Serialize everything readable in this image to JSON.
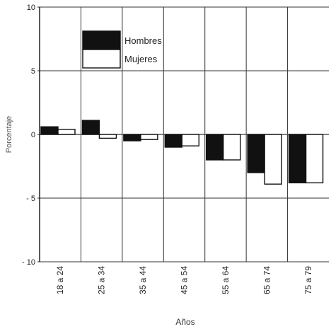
{
  "chart_data": {
    "type": "bar",
    "title": "",
    "xlabel": "Años",
    "ylabel": "Porcentaje",
    "ylim": [
      -10,
      10
    ],
    "yticks": [
      "10",
      "5",
      "0",
      "- 5",
      "- 10"
    ],
    "ytick_values": [
      10,
      5,
      0,
      -5,
      -10
    ],
    "categories": [
      "18 a 24",
      "25 a 34",
      "35 a 44",
      "45 a 54",
      "55 a 64",
      "65 a 74",
      "75 a 79"
    ],
    "series": [
      {
        "name": "Hombres",
        "values": [
          0.6,
          1.1,
          -0.5,
          -1.0,
          -2.0,
          -3.0,
          -3.8
        ],
        "color": "#111111"
      },
      {
        "name": "Mujeres",
        "values": [
          0.4,
          -0.3,
          -0.4,
          -0.9,
          -2.0,
          -3.9,
          -3.8
        ],
        "color": "#ffffff"
      }
    ],
    "grid": true,
    "legend": "top-left"
  }
}
